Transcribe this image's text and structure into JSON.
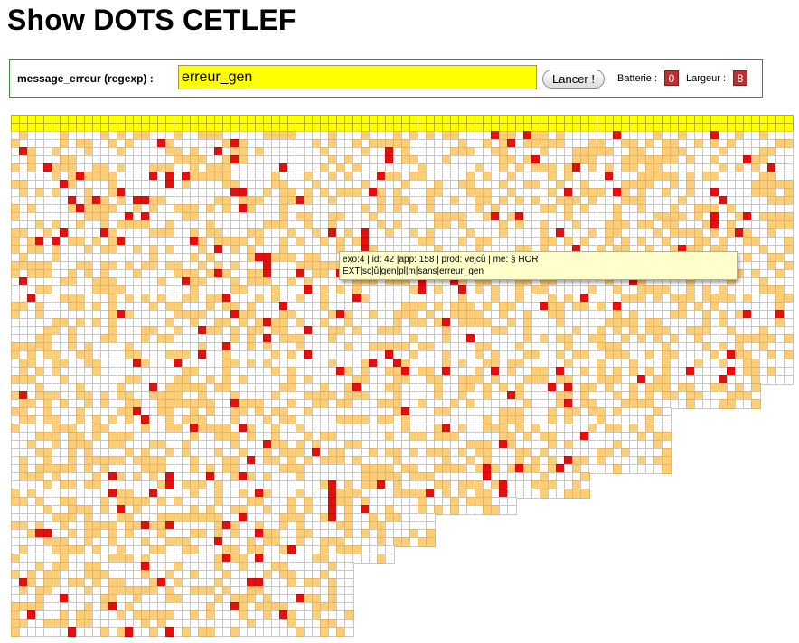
{
  "page": {
    "title": "Show DOTS CETLEF"
  },
  "form": {
    "label": "message_erreur (regexp) :",
    "input_value": "erreur_gen",
    "button_label": "Lancer !",
    "batterie_label": "Batterie :",
    "batterie_value": "0",
    "largeur_label": "Largeur :",
    "largeur_value": "8"
  },
  "tooltip": {
    "line1": "exo:4 | id: 42 |app: 158 | prod: vejců | me: § HOR",
    "line2": "EXT|sc|ů|gen|pl|m|sans|erreur_gen"
  },
  "colors": {
    "header": "#ffff00",
    "match": "#fdce78",
    "error": "#e31010",
    "empty": "#ffffff"
  }
}
